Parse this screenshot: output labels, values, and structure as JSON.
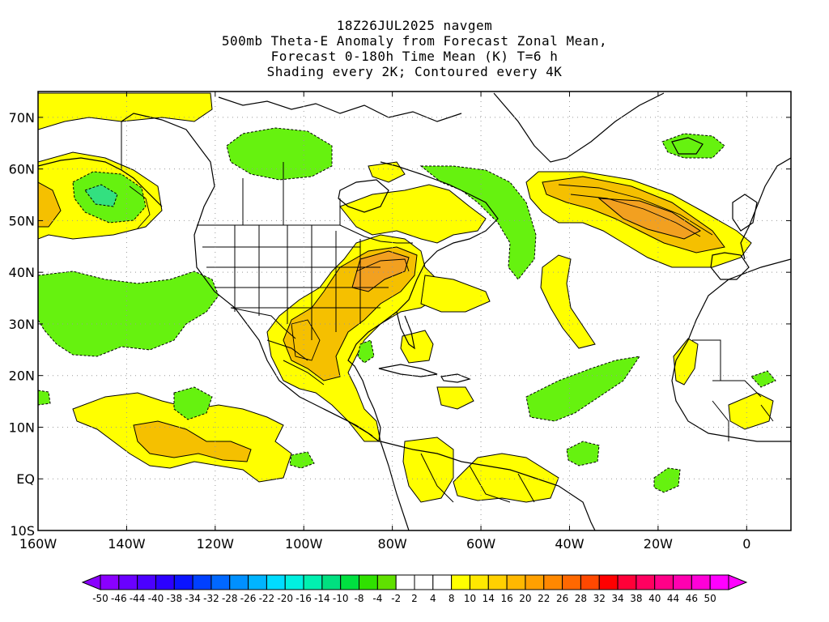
{
  "title": {
    "line1": "18Z26JUL2025 navgem",
    "line2": "500mb Theta-E Anomaly from Forecast Zonal Mean,",
    "line3": "Forecast 0-180h Time Mean (K) T=6 h",
    "line4": "Shading every 2K; Contoured every 4K"
  },
  "map": {
    "lon_range": [
      -160,
      10
    ],
    "lat_range": [
      -10,
      75
    ],
    "lon_ticks": [
      {
        "value": -160,
        "label": "160W"
      },
      {
        "value": -140,
        "label": "140W"
      },
      {
        "value": -120,
        "label": "120W"
      },
      {
        "value": -100,
        "label": "100W"
      },
      {
        "value": -80,
        "label": "80W"
      },
      {
        "value": -60,
        "label": "60W"
      },
      {
        "value": -40,
        "label": "40W"
      },
      {
        "value": -20,
        "label": "20W"
      },
      {
        "value": 0,
        "label": "0"
      }
    ],
    "lat_ticks": [
      {
        "value": 70,
        "label": "70N"
      },
      {
        "value": 60,
        "label": "60N"
      },
      {
        "value": 50,
        "label": "50N"
      },
      {
        "value": 40,
        "label": "40N"
      },
      {
        "value": 30,
        "label": "30N"
      },
      {
        "value": 20,
        "label": "20N"
      },
      {
        "value": 10,
        "label": "10N"
      },
      {
        "value": 0,
        "label": "EQ"
      },
      {
        "value": -10,
        "label": "10S"
      }
    ],
    "grid": true
  },
  "colorbar": {
    "labels": [
      "-50",
      "-46",
      "-44",
      "-40",
      "-38",
      "-34",
      "-32",
      "-28",
      "-26",
      "-22",
      "-20",
      "-16",
      "-14",
      "-10",
      "-8",
      "-4",
      "-2",
      "2",
      "4",
      "8",
      "10",
      "14",
      "16",
      "20",
      "22",
      "26",
      "28",
      "32",
      "34",
      "38",
      "40",
      "44",
      "46",
      "50"
    ],
    "colors": [
      "#8a00ff",
      "#6a00ff",
      "#4b00ff",
      "#2c00ff",
      "#0a14ff",
      "#0040ff",
      "#0068ff",
      "#0090ff",
      "#00b4ff",
      "#00dcff",
      "#00f0e0",
      "#00f0b0",
      "#00e080",
      "#00e040",
      "#30e000",
      "#60e000",
      "#ffffff",
      "#ffffff",
      "#ffffff",
      "#ffff00",
      "#ffe800",
      "#ffd000",
      "#ffb800",
      "#ffa000",
      "#ff8800",
      "#ff6800",
      "#ff4800",
      "#ff0000",
      "#ff0038",
      "#ff0060",
      "#ff0088",
      "#ff00b0",
      "#ff00d8",
      "#ff00ff"
    ]
  },
  "legend_colors": {
    "negative_anomaly": "#66f20f",
    "positive_anomaly_low": "#ffff00",
    "positive_anomaly_mid": "#f5c000",
    "positive_anomaly_high": "#f2a020"
  }
}
